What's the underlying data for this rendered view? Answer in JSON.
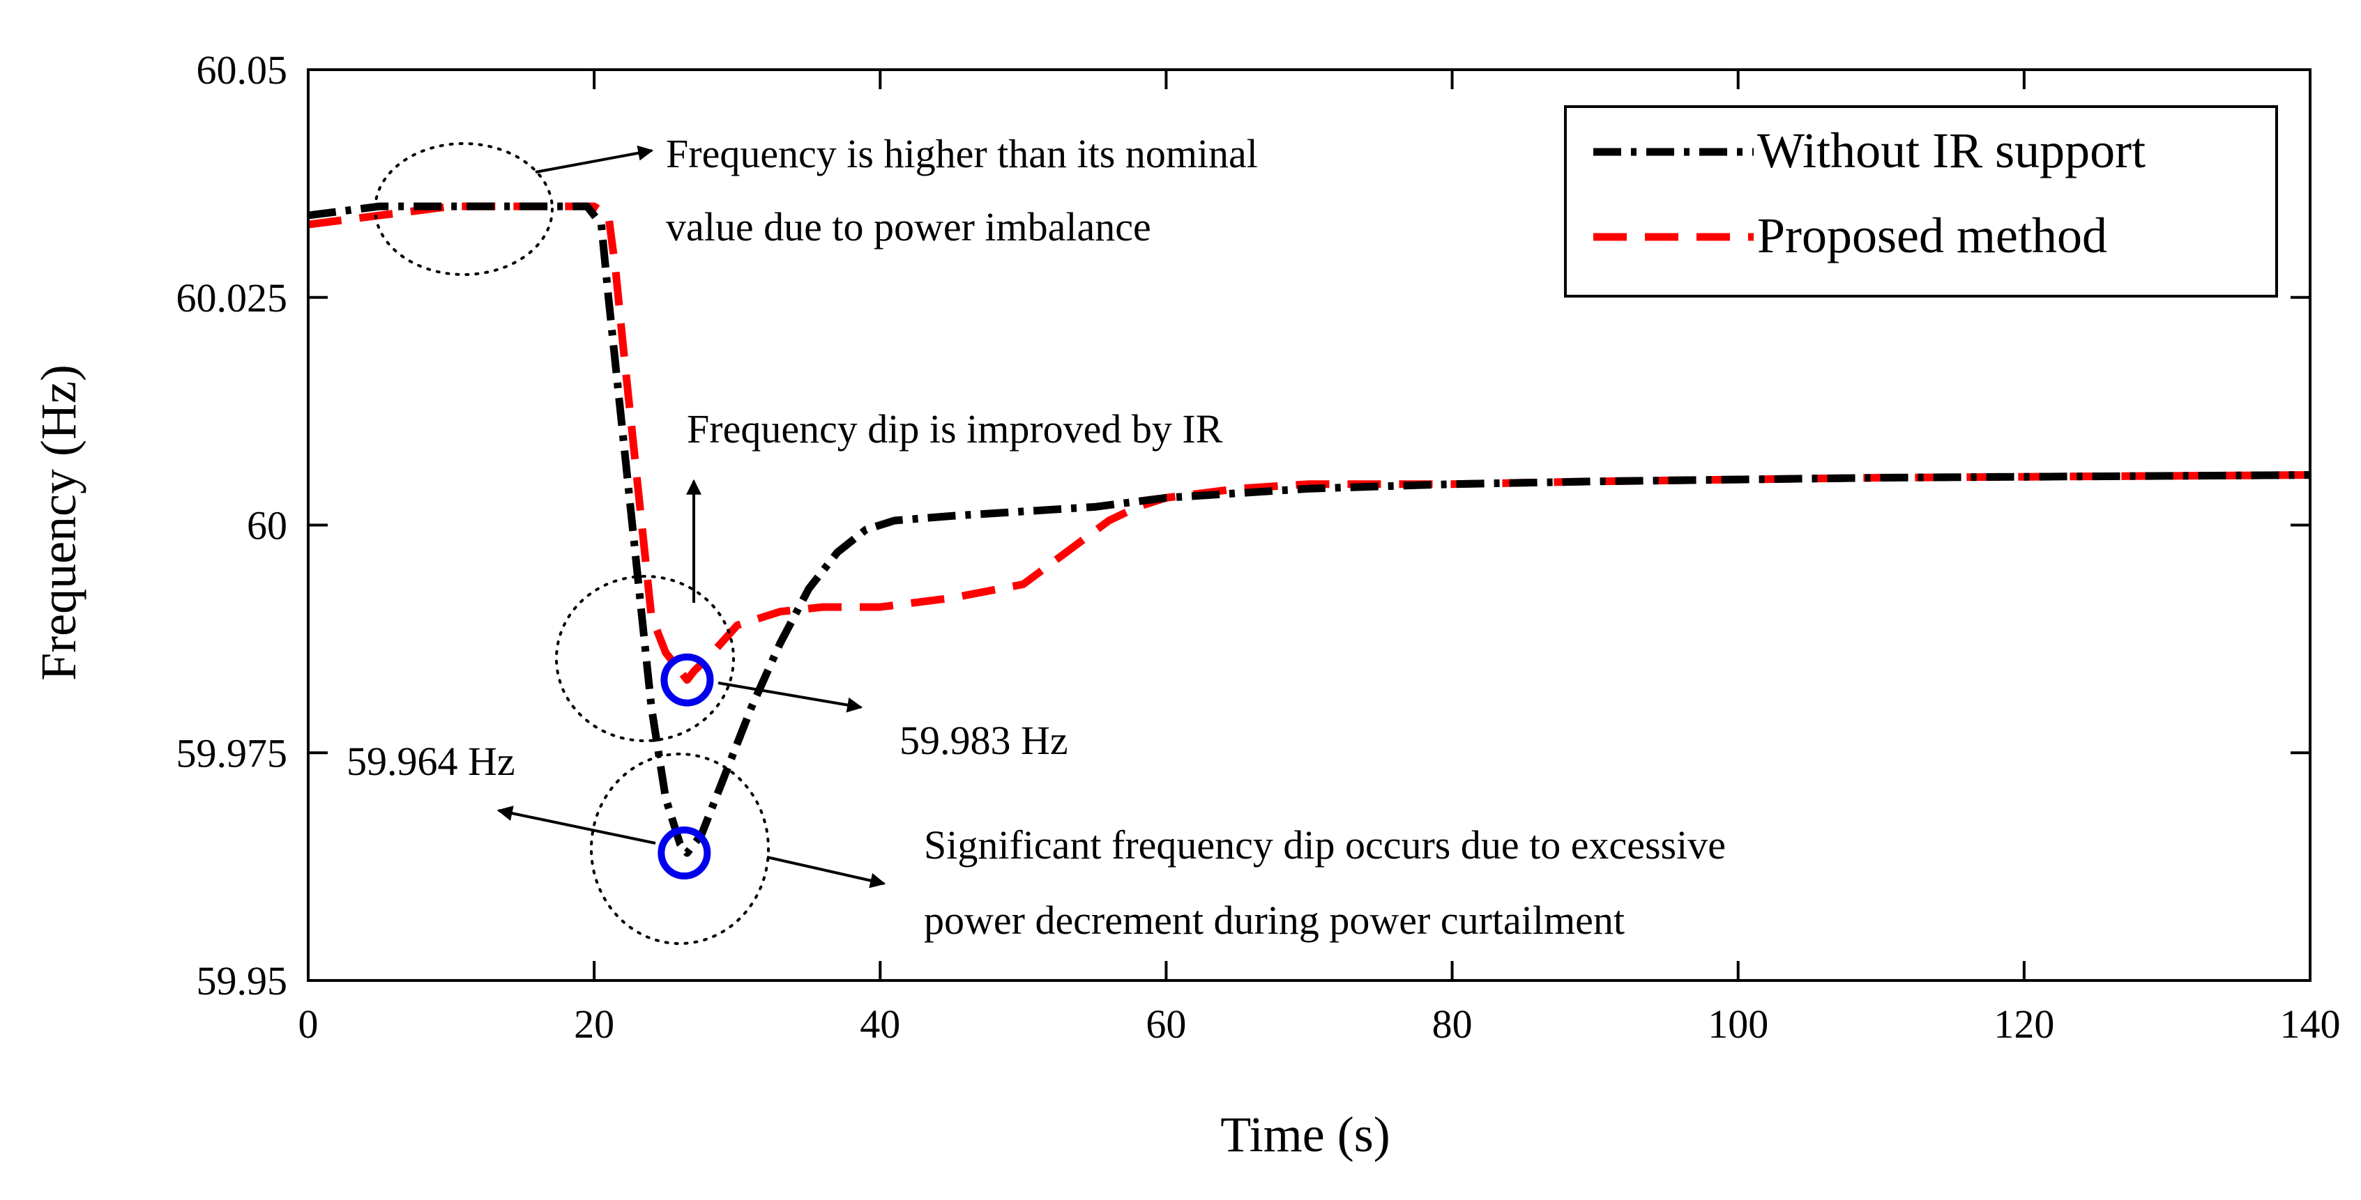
{
  "chart_data": {
    "type": "line",
    "title": "",
    "xlabel": "Time (s)",
    "ylabel": "Frequency (Hz)",
    "xlim": [
      0,
      140
    ],
    "ylim": [
      59.95,
      60.05
    ],
    "x_ticks": [
      0,
      20,
      40,
      60,
      80,
      100,
      120,
      140
    ],
    "x_tick_labels": [
      "0",
      "20",
      "40",
      "60",
      "80",
      "100",
      "120",
      "140"
    ],
    "y_ticks": [
      59.95,
      59.975,
      60,
      60.025,
      60.05
    ],
    "y_tick_labels": [
      "59.95",
      "59.975",
      "60",
      "60.025",
      "60.05"
    ],
    "grid": false,
    "legend_position": "top-right",
    "series": [
      {
        "name": "Without IR support",
        "color": "#000000",
        "style": "dash-dot",
        "x": [
          0,
          5,
          10,
          15,
          19.5,
          20.5,
          21,
          22,
          23,
          24,
          25,
          26,
          26.5,
          27.5,
          29,
          31,
          33,
          35,
          37,
          39,
          41,
          45,
          50,
          55,
          60,
          70,
          80,
          90,
          100,
          110,
          120,
          130,
          140
        ],
        "y": [
          60.034,
          60.035,
          60.035,
          60.035,
          60.035,
          60.033,
          60.025,
          60.01,
          59.995,
          59.98,
          59.97,
          59.965,
          59.964,
          59.966,
          59.972,
          59.98,
          59.987,
          59.993,
          59.997,
          59.9995,
          60.0005,
          60.001,
          60.0015,
          60.002,
          60.003,
          60.004,
          60.0045,
          60.0048,
          60.005,
          60.0052,
          60.0053,
          60.0054,
          60.0055
        ]
      },
      {
        "name": "Proposed method",
        "color": "#ff0000",
        "style": "dashed",
        "x": [
          0,
          5,
          10,
          15,
          20,
          21,
          21.5,
          22,
          23,
          24,
          25,
          26,
          26.5,
          27,
          28,
          30,
          33,
          36,
          40,
          45,
          50,
          53,
          56,
          58,
          60,
          65,
          70,
          80,
          90,
          100,
          110,
          120,
          130,
          140
        ],
        "y": [
          60.033,
          60.034,
          60.035,
          60.035,
          60.035,
          60.034,
          60.028,
          60.02,
          60.005,
          59.99,
          59.986,
          59.984,
          59.983,
          59.984,
          59.9855,
          59.989,
          59.9905,
          59.991,
          59.991,
          59.992,
          59.9935,
          59.997,
          60.0005,
          60.002,
          60.003,
          60.004,
          60.0045,
          60.0045,
          60.0048,
          60.005,
          60.0052,
          60.0053,
          60.0054,
          60.0055
        ]
      }
    ],
    "markers": [
      {
        "name": "dip-without-ir",
        "x": 26.3,
        "y": 59.964,
        "color": "#0000ee",
        "label": "59.964 Hz"
      },
      {
        "name": "dip-proposed",
        "x": 26.5,
        "y": 59.983,
        "color": "#0000ee",
        "label": "59.983 Hz"
      }
    ],
    "annotations": [
      {
        "name": "annotation-higher",
        "lines": [
          "Frequency is higher than its nominal",
          "value due to power imbalance"
        ]
      },
      {
        "name": "annotation-improved",
        "lines": [
          "Frequency dip is improved by IR"
        ]
      },
      {
        "name": "annotation-significant",
        "lines": [
          "Significant frequency dip occurs due to excessive",
          "power decrement during power curtailment"
        ]
      }
    ]
  }
}
